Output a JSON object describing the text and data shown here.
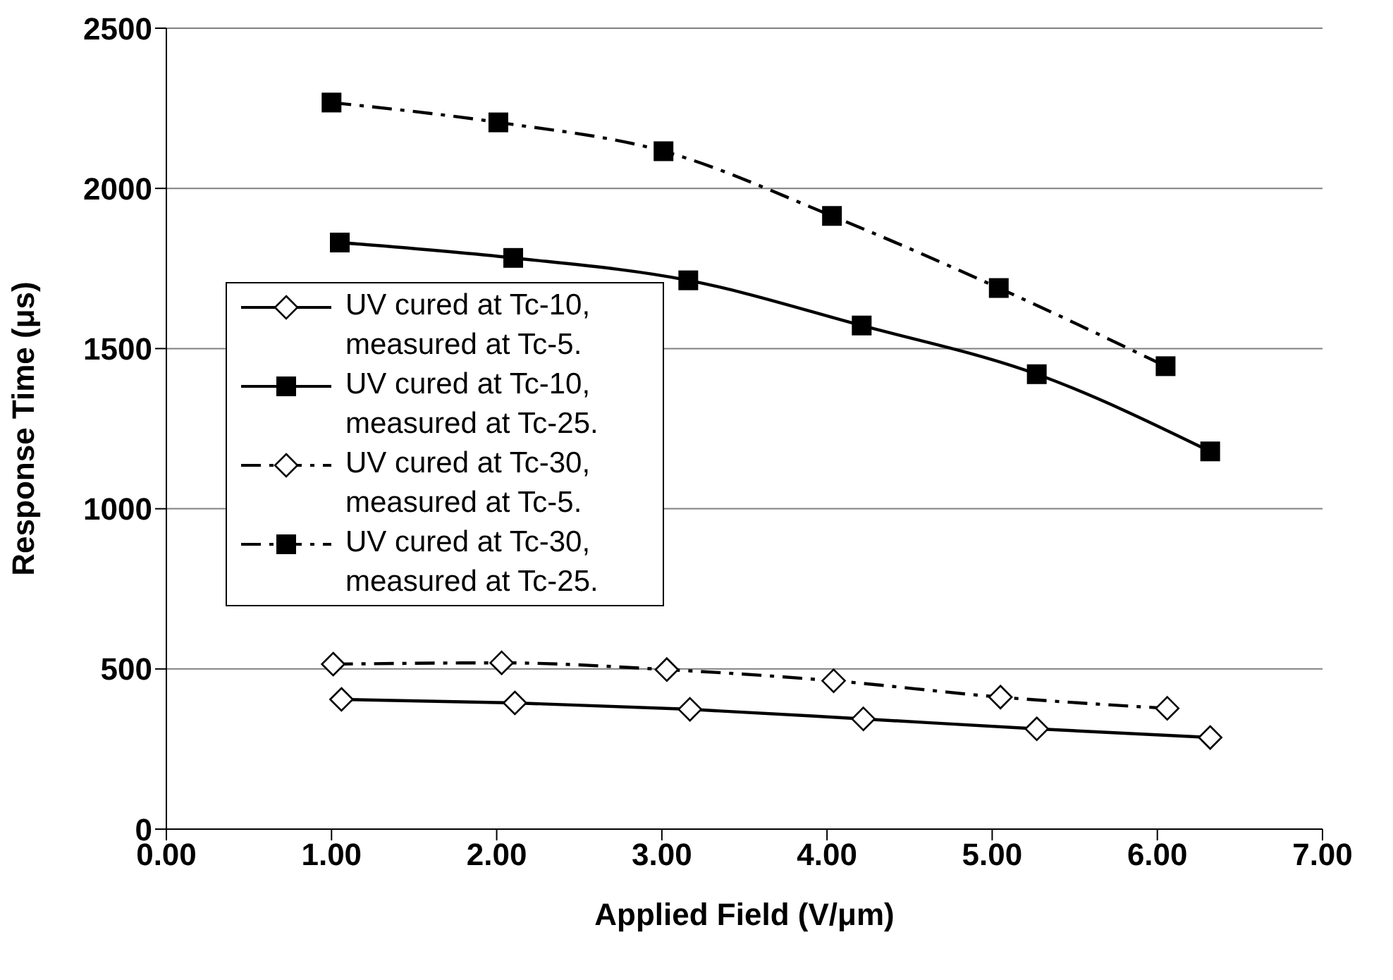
{
  "chart_data": {
    "type": "line",
    "xlabel": "Applied Field (V/μm)",
    "ylabel": "Response Time (μs)",
    "xlim": [
      0,
      7
    ],
    "ylim": [
      0,
      2500
    ],
    "xticks": [
      {
        "value": 0,
        "label": "0.00"
      },
      {
        "value": 1,
        "label": "1.00"
      },
      {
        "value": 2,
        "label": "2.00"
      },
      {
        "value": 3,
        "label": "3.00"
      },
      {
        "value": 4,
        "label": "4.00"
      },
      {
        "value": 5,
        "label": "5.00"
      },
      {
        "value": 6,
        "label": "6.00"
      },
      {
        "value": 7,
        "label": "7.00"
      }
    ],
    "yticks": [
      0,
      500,
      1000,
      1500,
      2000,
      2500
    ],
    "grid": "y",
    "legend": "left",
    "series": [
      {
        "name": "UV cured at Tc-10, measured at Tc-5.",
        "color": "#000000",
        "marker": "diamond",
        "line_style": "solid",
        "x": [
          1.06,
          2.11,
          3.17,
          4.22,
          5.27,
          6.32
        ],
        "values": [
          405,
          394,
          374,
          344,
          313,
          286
        ]
      },
      {
        "name": "UV cured at Tc-10, measured at Tc-25.",
        "color": "#000000",
        "marker": "square",
        "line_style": "solid",
        "x": [
          1.05,
          2.1,
          3.16,
          4.21,
          5.27,
          6.32
        ],
        "values": [
          1831,
          1783,
          1713,
          1572,
          1420,
          1179
        ]
      },
      {
        "name": "UV cured at Tc-30, measured at Tc-5.",
        "color": "#000000",
        "marker": "diamond",
        "line_style": "dashed",
        "x": [
          1.01,
          2.03,
          3.03,
          4.04,
          5.05,
          6.06
        ],
        "values": [
          515,
          519,
          498,
          463,
          412,
          377
        ]
      },
      {
        "name": "UV cured at Tc-30, measured at Tc-25.",
        "color": "#000000",
        "marker": "square",
        "line_style": "dashed",
        "x": [
          1,
          2.01,
          3.01,
          4.03,
          5.04,
          6.05
        ],
        "values": [
          2268,
          2206,
          2116,
          1914,
          1689,
          1445
        ]
      }
    ]
  }
}
